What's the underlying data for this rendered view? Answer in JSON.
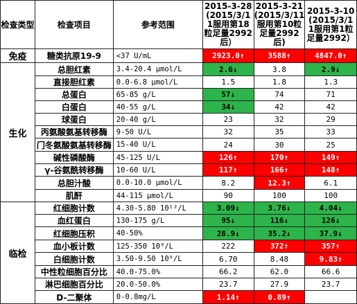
{
  "headers": {
    "category": "检查类型",
    "item": "检查项目",
    "range": "参考范围",
    "date1": "2015-3-28 (2015/3/1 1服用第18 粒足量2992 后）",
    "date2": "2015-3-21 (2015/3/11 服用第10粒 足量2992 后)",
    "date3": "2015-3-10 (2015/3/1 1服用第1粒 足量2992）"
  },
  "groups": [
    {
      "name": "免疫",
      "rows": [
        0
      ]
    },
    {
      "name": "生化",
      "rows": [
        1,
        2,
        3,
        4,
        5,
        6,
        7,
        8,
        9,
        10,
        11
      ]
    },
    {
      "name": "临检",
      "rows": [
        12,
        13,
        14,
        15,
        16,
        17,
        18,
        19
      ]
    }
  ],
  "rows": [
    {
      "name": "糖类抗原19-9",
      "ref": "<37 U/mL",
      "v": [
        "2923.0↑",
        "3588↑",
        "4847.0↑"
      ],
      "s": [
        "red",
        "red",
        "red"
      ]
    },
    {
      "name": "总胆红素",
      "ref": "3.4-20.4 μmol/L",
      "v": [
        "2.6↓",
        "3.8",
        "2.9↓"
      ],
      "s": [
        "green",
        "plain",
        "green"
      ]
    },
    {
      "name": "直接胆红素",
      "ref": "0.0-6.8 μmol/L",
      "v": [
        "1.5",
        "1.8",
        "1.3"
      ],
      "s": [
        "plain",
        "plain",
        "plain"
      ]
    },
    {
      "name": "总蛋白",
      "ref": "65-85 g/L",
      "v": [
        "57↓",
        "74",
        "71"
      ],
      "s": [
        "green",
        "plain",
        "plain"
      ]
    },
    {
      "name": "白蛋白",
      "ref": "40-55 g/L",
      "v": [
        "34↓",
        "42",
        "42"
      ],
      "s": [
        "green",
        "plain",
        "plain"
      ]
    },
    {
      "name": "球蛋白",
      "ref": "20-40 g/L",
      "v": [
        "23",
        "32",
        "29"
      ],
      "s": [
        "plain",
        "plain",
        "plain"
      ]
    },
    {
      "name": "丙氨酸氨基转移酶",
      "ref": "9-50 U/L",
      "v": [
        "32",
        "35",
        "33"
      ],
      "s": [
        "plain",
        "plain",
        "plain"
      ]
    },
    {
      "name": "门冬氨酸氨基转移酶",
      "ref": "15-40 U/L",
      "v": [
        "24",
        "30",
        "25"
      ],
      "s": [
        "plain",
        "plain",
        "plain"
      ]
    },
    {
      "name": "碱性磷酸酶",
      "ref": "45-125 U/L",
      "v": [
        "126↑",
        "170↑",
        "149↑"
      ],
      "s": [
        "red",
        "red",
        "red"
      ]
    },
    {
      "name": "γ-谷氨酰转移酶",
      "ref": "10-60 U/L",
      "v": [
        "117↑",
        "166↑",
        "148↑"
      ],
      "s": [
        "red",
        "red",
        "red"
      ]
    },
    {
      "name": "总胆汁酸",
      "ref": "0.0-10.0 μmol/L",
      "v": [
        "8.2",
        "12.3↑",
        "6.1"
      ],
      "s": [
        "plain",
        "red",
        "plain"
      ]
    },
    {
      "name": "肌酐",
      "ref": "44-115 μmol/L",
      "v": [
        "90",
        "100",
        "100"
      ],
      "s": [
        "plain",
        "plain",
        "plain"
      ]
    },
    {
      "name": "红细胞计数",
      "ref": "4.30-5.80 10¹²/L",
      "v": [
        "3.09↓",
        "3.76↓",
        "4.04↓"
      ],
      "s": [
        "green",
        "green",
        "green"
      ]
    },
    {
      "name": "血红蛋白",
      "ref": "130-175 g/L",
      "v": [
        "95↓",
        "116↓",
        "126↓"
      ],
      "s": [
        "green",
        "green",
        "green"
      ]
    },
    {
      "name": "红细胞压积",
      "ref": "40-50%",
      "v": [
        "28.9↓",
        "35.2↓",
        "37.9↓"
      ],
      "s": [
        "green",
        "green",
        "green"
      ]
    },
    {
      "name": "血小板计数",
      "ref": "125-350 10⁹/L",
      "v": [
        "222",
        "372↑",
        "357↑"
      ],
      "s": [
        "plain",
        "red",
        "red"
      ]
    },
    {
      "name": "白细胞计数",
      "ref": "3.50-9.50 10⁹/L",
      "v": [
        "6.70",
        "8.48",
        "9.83↑"
      ],
      "s": [
        "plain",
        "plain",
        "red"
      ]
    },
    {
      "name": "中性粒细胞百分比",
      "ref": "40.0-75.0%",
      "v": [
        "66.2",
        "62.0",
        "66.6"
      ],
      "s": [
        "plain",
        "plain",
        "plain"
      ]
    },
    {
      "name": "淋巴细胞百分比",
      "ref": "20.0-50.0%",
      "v": [
        "23.7",
        "27.9",
        "23.7"
      ],
      "s": [
        "plain",
        "plain",
        "plain"
      ]
    },
    {
      "name": "D-二聚体",
      "ref": "0-0.8mg/L",
      "v": [
        "1.14↑",
        "0.89↑",
        ""
      ],
      "s": [
        "red",
        "red",
        "plain"
      ]
    }
  ]
}
